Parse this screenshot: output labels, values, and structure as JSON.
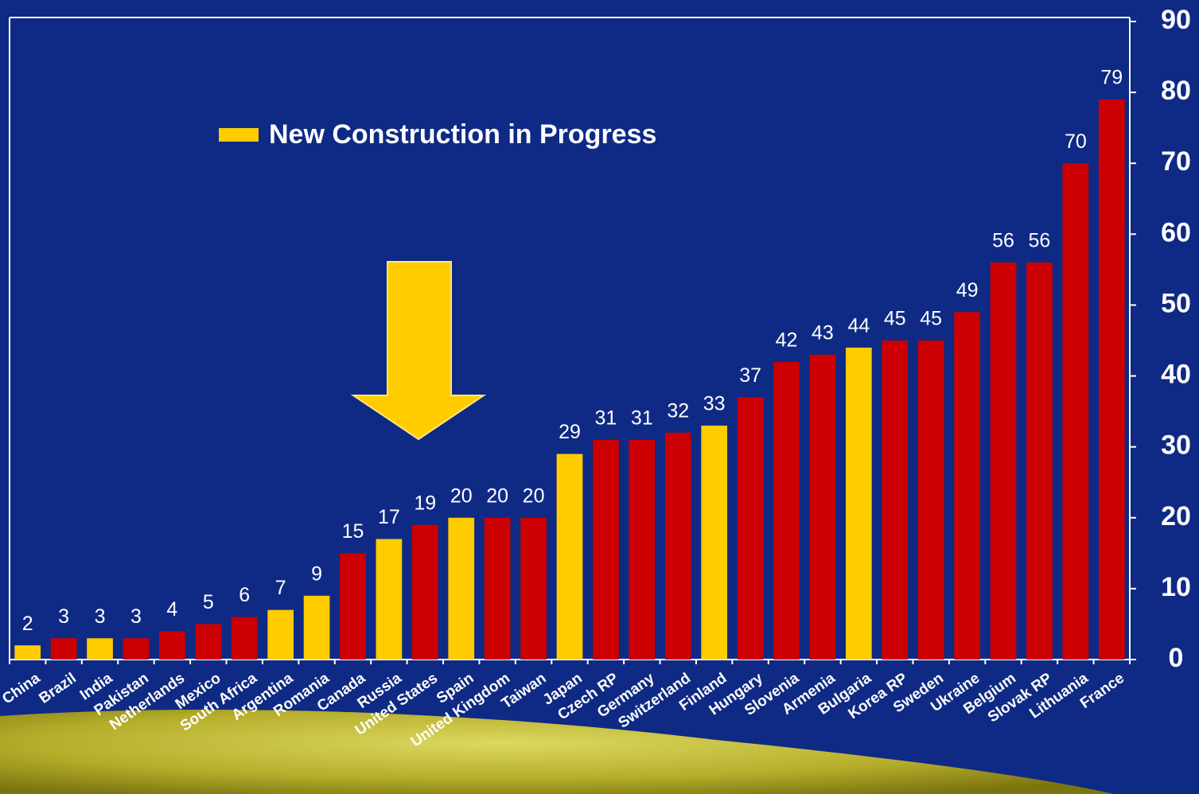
{
  "chart_data": {
    "type": "bar",
    "categories": [
      "China",
      "Brazil",
      "India",
      "Pakistan",
      "Netherlands",
      "Mexico",
      "South Africa",
      "Argentina",
      "Romania",
      "Canada",
      "Russia",
      "United States",
      "Spain",
      "United Kingdom",
      "Taiwan",
      "Japan",
      "Czech RP",
      "Germany",
      "Switzerland",
      "Finland",
      "Hungary",
      "Slovenia",
      "Armenia",
      "Bulgaria",
      "Korea RP",
      "Sweden",
      "Ukraine",
      "Belgium",
      "Slovak RP",
      "Lithuania",
      "France"
    ],
    "values": [
      2,
      3,
      3,
      3,
      4,
      5,
      6,
      7,
      9,
      15,
      17,
      19,
      20,
      20,
      20,
      29,
      31,
      31,
      32,
      33,
      37,
      42,
      43,
      44,
      45,
      45,
      49,
      56,
      56,
      70,
      79
    ],
    "colors": [
      "#ffcc00",
      "#cc0000",
      "#ffcc00",
      "#cc0000",
      "#cc0000",
      "#cc0000",
      "#cc0000",
      "#ffcc00",
      "#ffcc00",
      "#cc0000",
      "#ffcc00",
      "#cc0000",
      "#ffcc00",
      "#cc0000",
      "#cc0000",
      "#ffcc00",
      "#cc0000",
      "#cc0000",
      "#cc0000",
      "#ffcc00",
      "#cc0000",
      "#cc0000",
      "#cc0000",
      "#ffcc00",
      "#cc0000",
      "#cc0000",
      "#cc0000",
      "#cc0000",
      "#cc0000",
      "#cc0000",
      "#cc0000"
    ],
    "legend": {
      "label": "New Construction in Progress",
      "color": "#ffcc00"
    },
    "ylim": [
      0,
      90
    ],
    "yticks": [
      0,
      10,
      20,
      30,
      40,
      50,
      60,
      70,
      80,
      90
    ],
    "y_axis_side": "right"
  }
}
